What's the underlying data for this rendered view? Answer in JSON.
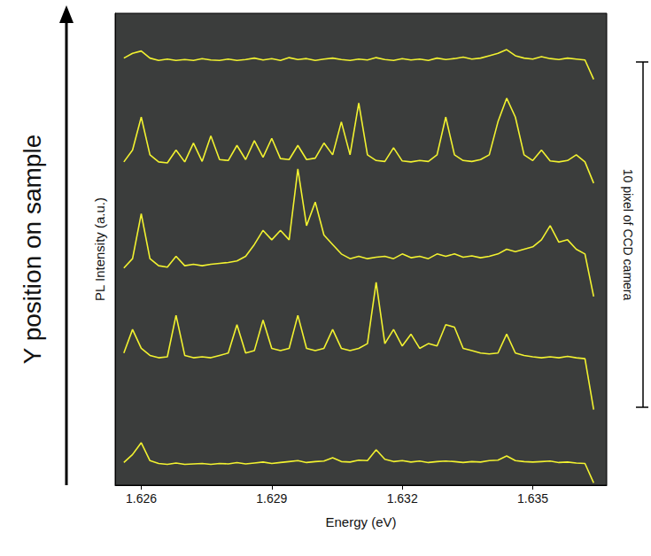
{
  "chart_data": {
    "type": "line",
    "xlabel": "Energy (eV)",
    "ylabel": "PL Intensity (a.u.)",
    "annotations": [
      "Y position on sample",
      "10 pixel of CCD camera"
    ],
    "xlim": [
      1.6254,
      1.6367
    ],
    "xticks": [
      1.626,
      1.629,
      1.632,
      1.635
    ],
    "ylim": [
      0,
      100
    ],
    "tick_labels": "x",
    "grid": false,
    "x": [
      1.6256,
      1.6258,
      1.626,
      1.6262,
      1.6264,
      1.6266,
      1.6268,
      1.627,
      1.6272,
      1.6274,
      1.6276,
      1.6278,
      1.628,
      1.6282,
      1.6284,
      1.6286,
      1.6288,
      1.629,
      1.6292,
      1.6294,
      1.6296,
      1.6298,
      1.63,
      1.6302,
      1.6304,
      1.6306,
      1.6308,
      1.631,
      1.6312,
      1.6314,
      1.6316,
      1.6318,
      1.632,
      1.6322,
      1.6324,
      1.6326,
      1.6328,
      1.633,
      1.6332,
      1.6334,
      1.6336,
      1.6338,
      1.634,
      1.6342,
      1.6344,
      1.6346,
      1.6348,
      1.635,
      1.6352,
      1.6354,
      1.6356,
      1.6358,
      1.636,
      1.6362,
      1.6364
    ],
    "series": [
      {
        "color": "#f2f230",
        "values": [
          90.5,
          91.5,
          92,
          90.5,
          90,
          90.3,
          90,
          90.2,
          90,
          90.4,
          90.1,
          90,
          90.3,
          90,
          90.2,
          90.5,
          90.1,
          90.4,
          90,
          90.6,
          90.2,
          90.4,
          90,
          90.3,
          90.5,
          90.2,
          90,
          90.3,
          90.1,
          90.6,
          90.2,
          90,
          90.4,
          90.1,
          90.3,
          90,
          90.5,
          90.2,
          90.4,
          90.7,
          90.3,
          90.5,
          91,
          91.5,
          92.3,
          91,
          90.5,
          90.3,
          90.8,
          90.4,
          90.2,
          90.5,
          90.3,
          90.1,
          86
        ]
      },
      {
        "color": "#f2f230",
        "values": [
          68.5,
          71,
          78,
          70,
          68.5,
          68.3,
          71,
          68.5,
          72.5,
          68.6,
          74,
          69,
          68.8,
          72,
          69,
          73,
          69.5,
          73.5,
          69.2,
          69,
          72,
          69,
          69.3,
          72.5,
          70,
          77,
          70,
          81,
          70,
          68.8,
          68.6,
          71.5,
          68.7,
          68.5,
          68.8,
          68.6,
          70,
          78,
          70,
          68.8,
          68.6,
          69,
          70,
          77,
          82,
          78,
          70,
          68.8,
          71,
          68.7,
          68.5,
          68.8,
          70,
          68.5,
          64
        ]
      },
      {
        "color": "#f2f230",
        "values": [
          46,
          48,
          57.5,
          48,
          46.5,
          46.2,
          48.5,
          46.5,
          46.8,
          46.5,
          46.8,
          47,
          47.2,
          47.5,
          48.5,
          51,
          54,
          52,
          54,
          52,
          67,
          55,
          60,
          53,
          51,
          49,
          48,
          48.5,
          48,
          48.3,
          48.5,
          48,
          49,
          48.2,
          48.5,
          48,
          49,
          48.5,
          49,
          48.3,
          48.6,
          48.2,
          48.5,
          49,
          50,
          49.5,
          50,
          50.5,
          52,
          55,
          51.5,
          52,
          50,
          49,
          40
        ]
      },
      {
        "color": "#f2f230",
        "values": [
          28,
          33,
          29,
          27.5,
          27,
          27.2,
          36,
          27.5,
          27,
          27.2,
          27,
          27.5,
          28,
          34,
          28,
          28.5,
          35,
          29,
          28.5,
          29,
          36,
          29,
          28.5,
          29,
          33,
          29,
          28.5,
          29,
          30,
          43,
          30,
          33,
          29.5,
          32,
          29,
          30,
          29.5,
          34,
          33.5,
          29,
          28.5,
          28,
          27.8,
          28,
          32,
          28,
          27.5,
          27.2,
          27,
          27.2,
          27,
          27.3,
          27,
          26.8,
          16
        ]
      },
      {
        "color": "#f2f230",
        "values": [
          4.8,
          6.5,
          9,
          5.2,
          4.6,
          4.4,
          4.7,
          4.4,
          4.5,
          4.6,
          4.4,
          4.6,
          4.5,
          4.8,
          4.5,
          4.7,
          4.9,
          4.6,
          4.8,
          5,
          5.2,
          4.8,
          5,
          5.1,
          5.8,
          5,
          4.9,
          5.3,
          5.2,
          7.5,
          5.5,
          5,
          5.2,
          4.9,
          5.1,
          4.8,
          5,
          5.1,
          5,
          4.8,
          5,
          4.9,
          5.2,
          5.3,
          6.2,
          5.2,
          5,
          4.9,
          5,
          5.1,
          4.8,
          4.9,
          4.7,
          4.6,
          0.5
        ]
      }
    ]
  }
}
